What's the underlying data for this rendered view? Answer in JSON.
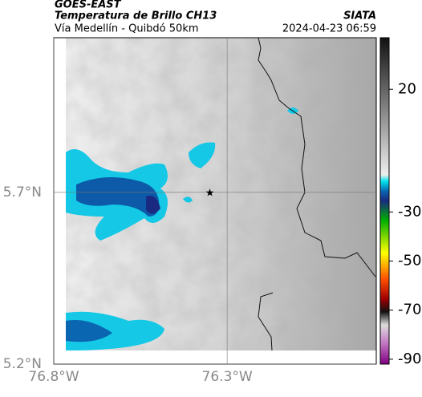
{
  "header": {
    "product": "GOES-EAST",
    "title": "Temperatura de Brillo CH13",
    "source": "SIATA",
    "subtitle": "Vía Medellín - Quibdó 50km",
    "datetime": "2024-04-23 06:59"
  },
  "map": {
    "xlim": [
      -76.8,
      -75.87
    ],
    "ylim": [
      5.2,
      6.15
    ],
    "xticks": [
      {
        "value": -76.8,
        "label": "76.8°W"
      },
      {
        "value": -76.3,
        "label": "76.3°W"
      }
    ],
    "yticks": [
      {
        "value": 5.7,
        "label": "5.7°N"
      },
      {
        "value": 5.2,
        "label": "5.2°N"
      }
    ],
    "marker": {
      "lon": -76.35,
      "lat": 5.7
    }
  },
  "colorbar": {
    "lim": [
      -92,
      41
    ],
    "ticks": [
      20,
      -30,
      -50,
      -70,
      -90
    ]
  }
}
